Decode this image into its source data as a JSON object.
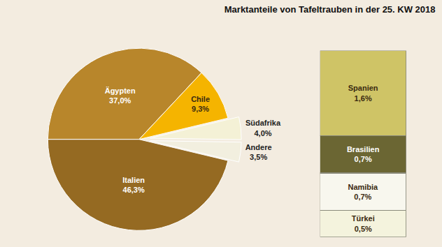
{
  "chart_data": [
    {
      "type": "pie",
      "title": "Marktanteile von Tafeltrauben in der 25. KW 2018",
      "categories": [
        "Ägypten",
        "Chile",
        "Südafrika",
        "Andere",
        "Italien"
      ],
      "values": [
        37.0,
        9.3,
        4.0,
        3.5,
        46.3
      ],
      "value_labels": [
        "37,0%",
        "9,3%",
        "4,0%",
        "3,5%",
        "46,3%"
      ],
      "colors": [
        "#b8862b",
        "#f5b400",
        "#f4f1d6",
        "#f2efdf",
        "#956a22"
      ],
      "data_labels": true
    },
    {
      "type": "bar",
      "stacked": true,
      "data_labels": true,
      "tick_labels": false,
      "series": [
        {
          "name": "Spanien",
          "color": "#cfc466",
          "values": [
            1.6
          ],
          "value_labels": [
            "1,6%"
          ]
        },
        {
          "name": "Brasilien",
          "color": "#6b6633",
          "values": [
            0.7
          ],
          "value_labels": [
            "0,7%"
          ]
        },
        {
          "name": "Namibia",
          "color": "#f8f7ee",
          "values": [
            0.7
          ],
          "value_labels": [
            "0,7%"
          ]
        },
        {
          "name": "Türkei",
          "color": "#f4f3dd",
          "values": [
            0.5
          ],
          "value_labels": [
            "0,5%"
          ]
        }
      ]
    }
  ]
}
